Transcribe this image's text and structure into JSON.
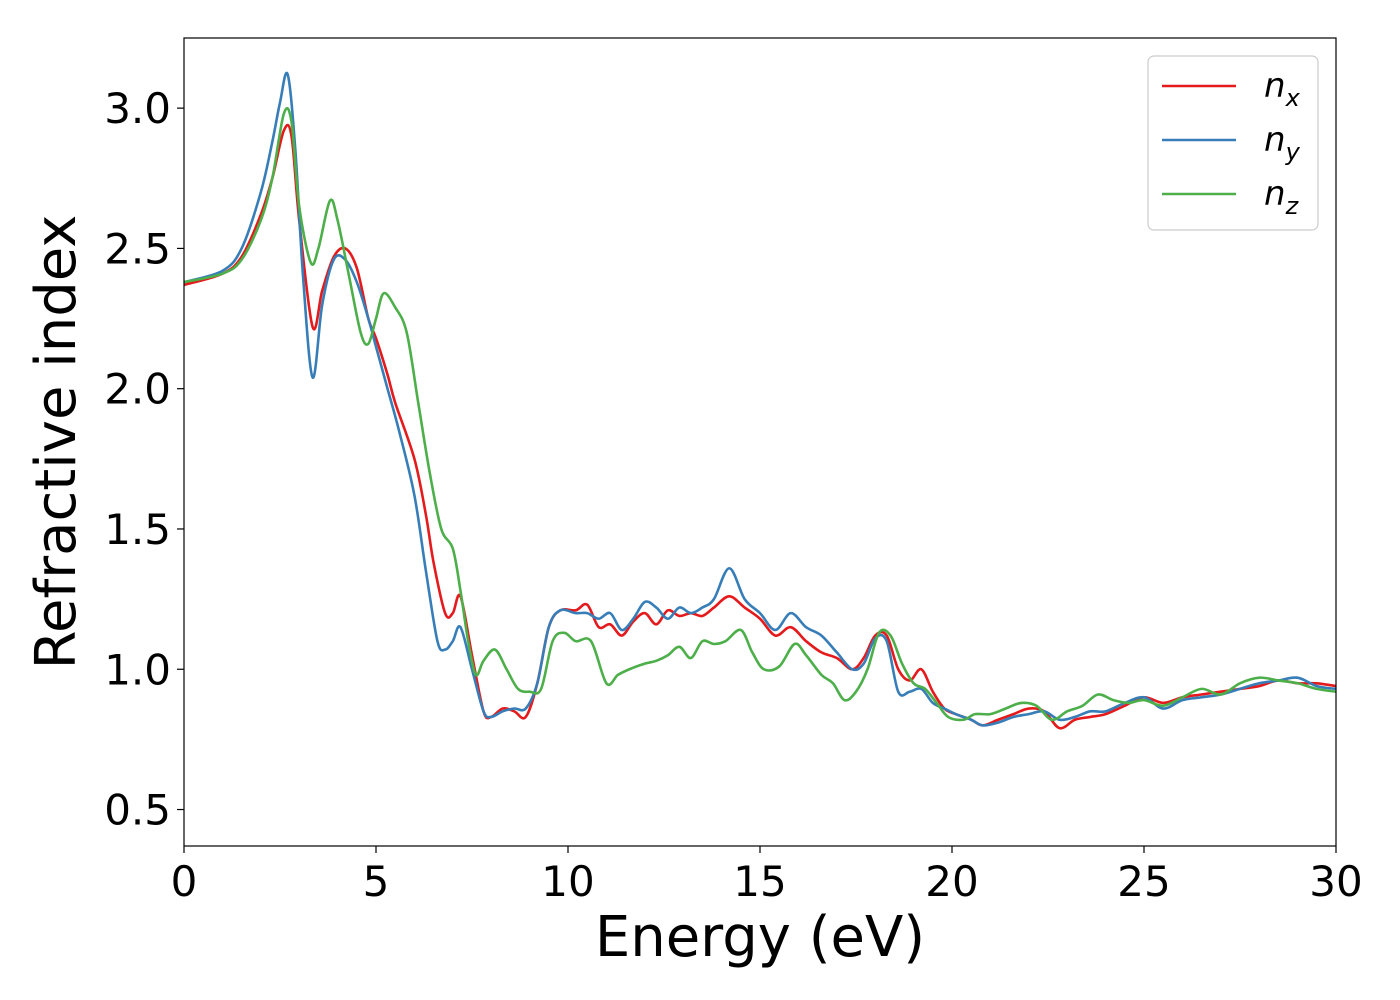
{
  "chart_data": {
    "type": "line",
    "title": "",
    "xlabel": "Energy (eV)",
    "ylabel": "Refractive index",
    "xlim": [
      0,
      30
    ],
    "ylim": [
      0.37,
      3.25
    ],
    "xticks": [
      "0",
      "5",
      "10",
      "15",
      "20",
      "25",
      "30"
    ],
    "yticks": [
      "0.5",
      "1.0",
      "1.5",
      "2.0",
      "2.5",
      "3.0"
    ],
    "grid": false,
    "legend_position": "top-right",
    "series": [
      {
        "name": "n",
        "subscript": "x",
        "color": "#e41a1c",
        "x": [
          0,
          1,
          1.5,
          2.0,
          2.3,
          2.6,
          2.8,
          3.0,
          3.35,
          3.6,
          3.9,
          4.2,
          4.5,
          4.8,
          5.0,
          5.3,
          5.5,
          6.0,
          6.3,
          6.5,
          6.8,
          7.0,
          7.2,
          7.5,
          7.8,
          8.0,
          8.3,
          8.6,
          8.9,
          9.2,
          9.5,
          9.8,
          10.2,
          10.5,
          10.8,
          11.1,
          11.4,
          11.7,
          12.0,
          12.3,
          12.6,
          12.9,
          13.2,
          13.5,
          13.8,
          14.2,
          14.6,
          15.0,
          15.4,
          15.8,
          16.2,
          16.6,
          17.0,
          17.4,
          17.7,
          18.0,
          18.3,
          18.6,
          18.9,
          19.2,
          19.5,
          19.8,
          20.1,
          20.5,
          20.8,
          21.2,
          21.6,
          22.0,
          22.4,
          22.8,
          23.2,
          23.6,
          24.0,
          24.5,
          25.0,
          25.5,
          26.0,
          26.5,
          27.0,
          27.5,
          28.0,
          28.5,
          29.0,
          29.5,
          30.0
        ],
        "y": [
          2.37,
          2.41,
          2.47,
          2.62,
          2.75,
          2.92,
          2.9,
          2.6,
          2.22,
          2.35,
          2.47,
          2.5,
          2.43,
          2.25,
          2.18,
          2.05,
          1.95,
          1.75,
          1.55,
          1.38,
          1.2,
          1.2,
          1.26,
          1.05,
          0.85,
          0.83,
          0.86,
          0.85,
          0.83,
          0.95,
          1.15,
          1.21,
          1.21,
          1.23,
          1.15,
          1.16,
          1.12,
          1.17,
          1.2,
          1.16,
          1.21,
          1.19,
          1.2,
          1.19,
          1.22,
          1.26,
          1.22,
          1.18,
          1.12,
          1.15,
          1.1,
          1.06,
          1.04,
          1.0,
          1.04,
          1.12,
          1.12,
          1.0,
          0.96,
          1.0,
          0.92,
          0.86,
          0.84,
          0.82,
          0.8,
          0.82,
          0.84,
          0.86,
          0.85,
          0.79,
          0.82,
          0.83,
          0.84,
          0.87,
          0.9,
          0.88,
          0.9,
          0.91,
          0.92,
          0.93,
          0.94,
          0.96,
          0.95,
          0.95,
          0.94
        ]
      },
      {
        "name": "n",
        "subscript": "y",
        "color": "#377eb8",
        "x": [
          0,
          1,
          1.5,
          2.0,
          2.3,
          2.5,
          2.7,
          2.9,
          3.1,
          3.35,
          3.6,
          3.9,
          4.2,
          4.5,
          4.8,
          5.0,
          5.3,
          5.6,
          6.0,
          6.3,
          6.6,
          6.8,
          7.0,
          7.2,
          7.5,
          7.8,
          8.0,
          8.3,
          8.6,
          8.9,
          9.2,
          9.5,
          9.8,
          10.2,
          10.5,
          10.8,
          11.1,
          11.4,
          11.7,
          12.0,
          12.3,
          12.6,
          12.9,
          13.2,
          13.5,
          13.8,
          14.2,
          14.6,
          15.0,
          15.4,
          15.8,
          16.2,
          16.6,
          17.0,
          17.4,
          17.7,
          18.0,
          18.3,
          18.6,
          18.9,
          19.2,
          19.5,
          19.8,
          20.1,
          20.5,
          20.8,
          21.2,
          21.6,
          22.0,
          22.4,
          22.8,
          23.2,
          23.6,
          24.0,
          24.5,
          25.0,
          25.5,
          26.0,
          26.5,
          27.0,
          27.5,
          28.0,
          28.5,
          29.0,
          29.5,
          30.0
        ],
        "y": [
          2.38,
          2.42,
          2.5,
          2.7,
          2.88,
          3.02,
          3.12,
          2.85,
          2.4,
          2.04,
          2.3,
          2.46,
          2.46,
          2.38,
          2.25,
          2.15,
          2.0,
          1.85,
          1.62,
          1.35,
          1.1,
          1.07,
          1.1,
          1.15,
          1.0,
          0.85,
          0.83,
          0.85,
          0.86,
          0.86,
          0.95,
          1.15,
          1.21,
          1.2,
          1.2,
          1.18,
          1.2,
          1.14,
          1.18,
          1.24,
          1.22,
          1.18,
          1.22,
          1.2,
          1.22,
          1.25,
          1.36,
          1.25,
          1.2,
          1.14,
          1.2,
          1.15,
          1.12,
          1.06,
          1.0,
          1.02,
          1.11,
          1.1,
          0.92,
          0.92,
          0.93,
          0.88,
          0.86,
          0.84,
          0.82,
          0.8,
          0.81,
          0.83,
          0.84,
          0.85,
          0.82,
          0.83,
          0.85,
          0.85,
          0.88,
          0.9,
          0.86,
          0.89,
          0.9,
          0.91,
          0.93,
          0.95,
          0.96,
          0.97,
          0.94,
          0.93
        ]
      },
      {
        "name": "n",
        "subscript": "z",
        "color": "#4daf4a",
        "x": [
          0,
          1,
          1.5,
          2.0,
          2.3,
          2.6,
          2.8,
          3.0,
          3.3,
          3.5,
          3.8,
          4.0,
          4.3,
          4.6,
          4.8,
          5.0,
          5.2,
          5.5,
          5.8,
          6.1,
          6.4,
          6.7,
          7.0,
          7.2,
          7.4,
          7.6,
          7.8,
          8.1,
          8.4,
          8.7,
          9.0,
          9.3,
          9.6,
          9.9,
          10.2,
          10.6,
          11.0,
          11.3,
          11.6,
          12.0,
          12.3,
          12.6,
          12.9,
          13.2,
          13.5,
          13.8,
          14.1,
          14.5,
          14.8,
          15.1,
          15.5,
          15.9,
          16.2,
          16.6,
          16.9,
          17.2,
          17.5,
          17.8,
          18.1,
          18.4,
          18.7,
          19.0,
          19.3,
          19.6,
          19.9,
          20.3,
          20.6,
          21.0,
          21.4,
          21.8,
          22.2,
          22.6,
          23.0,
          23.4,
          23.8,
          24.2,
          24.6,
          25.0,
          25.5,
          26.0,
          26.5,
          27.0,
          27.5,
          28.0,
          28.5,
          29.0,
          29.5,
          30.0
        ],
        "y": [
          2.38,
          2.41,
          2.46,
          2.6,
          2.75,
          2.98,
          2.95,
          2.65,
          2.45,
          2.5,
          2.67,
          2.6,
          2.4,
          2.2,
          2.16,
          2.25,
          2.34,
          2.29,
          2.2,
          1.95,
          1.7,
          1.5,
          1.43,
          1.28,
          1.1,
          0.98,
          1.03,
          1.07,
          1.0,
          0.93,
          0.92,
          0.93,
          1.1,
          1.13,
          1.1,
          1.1,
          0.95,
          0.98,
          1.0,
          1.02,
          1.03,
          1.05,
          1.08,
          1.04,
          1.1,
          1.09,
          1.1,
          1.14,
          1.06,
          1.0,
          1.01,
          1.09,
          1.05,
          0.98,
          0.95,
          0.89,
          0.92,
          1.0,
          1.13,
          1.12,
          1.02,
          0.95,
          0.93,
          0.88,
          0.83,
          0.82,
          0.84,
          0.84,
          0.86,
          0.88,
          0.87,
          0.82,
          0.85,
          0.87,
          0.91,
          0.89,
          0.88,
          0.89,
          0.87,
          0.9,
          0.93,
          0.91,
          0.95,
          0.97,
          0.96,
          0.95,
          0.93,
          0.92
        ]
      }
    ]
  }
}
